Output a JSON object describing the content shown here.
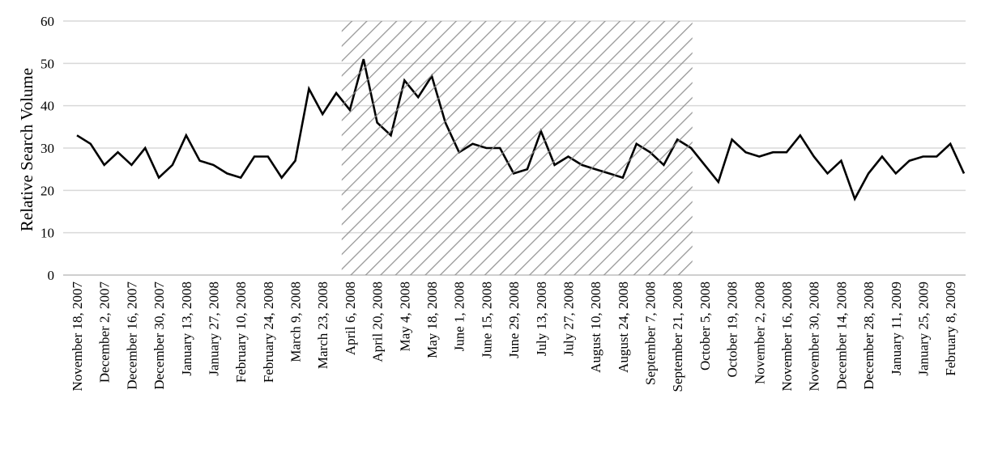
{
  "chart_data": {
    "type": "line",
    "title": "",
    "xlabel": "",
    "ylabel": "Relative Search Volume",
    "ylim": [
      0,
      60
    ],
    "yticks": [
      0,
      10,
      20,
      30,
      40,
      50,
      60
    ],
    "grid": true,
    "x_start": "November 18, 2007",
    "x_interval": "weekly",
    "xtick_labels": [
      "November 18, 2007",
      "December 2, 2007",
      "December 16, 2007",
      "December 30, 2007",
      "January 13, 2008",
      "January 27, 2008",
      "February 10, 2008",
      "February 24, 2008",
      "March 9, 2008",
      "March 23, 2008",
      "April 6, 2008",
      "April 20, 2008",
      "May 4, 2008",
      "May 18, 2008",
      "June 1, 2008",
      "June 15, 2008",
      "June 29, 2008",
      "July 13, 2008",
      "July 27, 2008",
      "August 10, 2008",
      "August 24, 2008",
      "September 7, 2008",
      "September 21, 2008",
      "October 5, 2008",
      "October 19, 2008",
      "November 2, 2008",
      "November 16, 2008",
      "November 30, 2008",
      "December 14, 2008",
      "December 28, 2008",
      "January 11, 2009",
      "January 25, 2009",
      "February 8, 2009"
    ],
    "series": [
      {
        "name": "Relative Search Volume",
        "color": "#000000",
        "values": [
          33,
          31,
          26,
          29,
          26,
          30,
          23,
          26,
          33,
          27,
          26,
          24,
          23,
          28,
          28,
          23,
          27,
          44,
          38,
          43,
          39,
          51,
          36,
          33,
          46,
          42,
          47,
          36,
          29,
          31,
          30,
          30,
          24,
          25,
          34,
          26,
          28,
          26,
          25,
          24,
          23,
          31,
          29,
          26,
          32,
          30,
          26,
          22,
          32,
          29,
          28,
          29,
          29,
          33,
          28,
          24,
          27,
          18,
          24,
          28,
          24,
          27,
          28,
          28,
          31,
          24
        ]
      }
    ],
    "shaded_region_week_index": [
      19.4,
      45.1
    ],
    "shade_color": "#8c8c8c",
    "grid_color": "#d9d9d9"
  }
}
